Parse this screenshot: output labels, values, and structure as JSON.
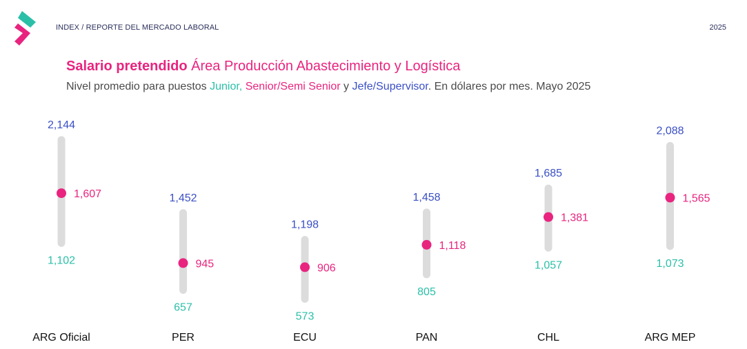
{
  "header": {
    "breadcrumb": "INDEX / REPORTE DEL MERCADO LABORAL",
    "year": "2025"
  },
  "colors": {
    "junior": "#2bbfa8",
    "senior": "#e8247f",
    "jefe": "#3a4fc4",
    "bar": "#dcdcdc",
    "text": "#4a4a4a"
  },
  "chart_data": {
    "type": "range",
    "title_bold": "Salario pretendido",
    "title_rest": " Área Producción Abastecimiento y Logística",
    "subtitle": {
      "prefix": "Nivel promedio para puestos ",
      "junior_label": "Junior,",
      "senior_label": "Senior/Semi Senior",
      "connector": " y ",
      "jefe_label": "Jefe/Supervisor",
      "suffix": ". En dólares por mes. Mayo 2025"
    },
    "categories": [
      "ARG Oficial",
      "PER",
      "ECU",
      "PAN",
      "CHL",
      "ARG MEP"
    ],
    "series": [
      {
        "name": "Junior",
        "values": [
          1102,
          657,
          573,
          805,
          1057,
          1073
        ],
        "labels": [
          "1,102",
          "657",
          "573",
          "805",
          "1,057",
          "1,073"
        ]
      },
      {
        "name": "Senior/Semi Senior",
        "values": [
          1607,
          945,
          906,
          1118,
          1381,
          1565
        ],
        "labels": [
          "1,607",
          "945",
          "906",
          "1,118",
          "1,381",
          "1,565"
        ]
      },
      {
        "name": "Jefe/Supervisor",
        "values": [
          2144,
          1452,
          1198,
          1458,
          1685,
          2088
        ],
        "labels": [
          "2,144",
          "1,452",
          "1,198",
          "1,458",
          "1,685",
          "2,088"
        ]
      }
    ]
  }
}
